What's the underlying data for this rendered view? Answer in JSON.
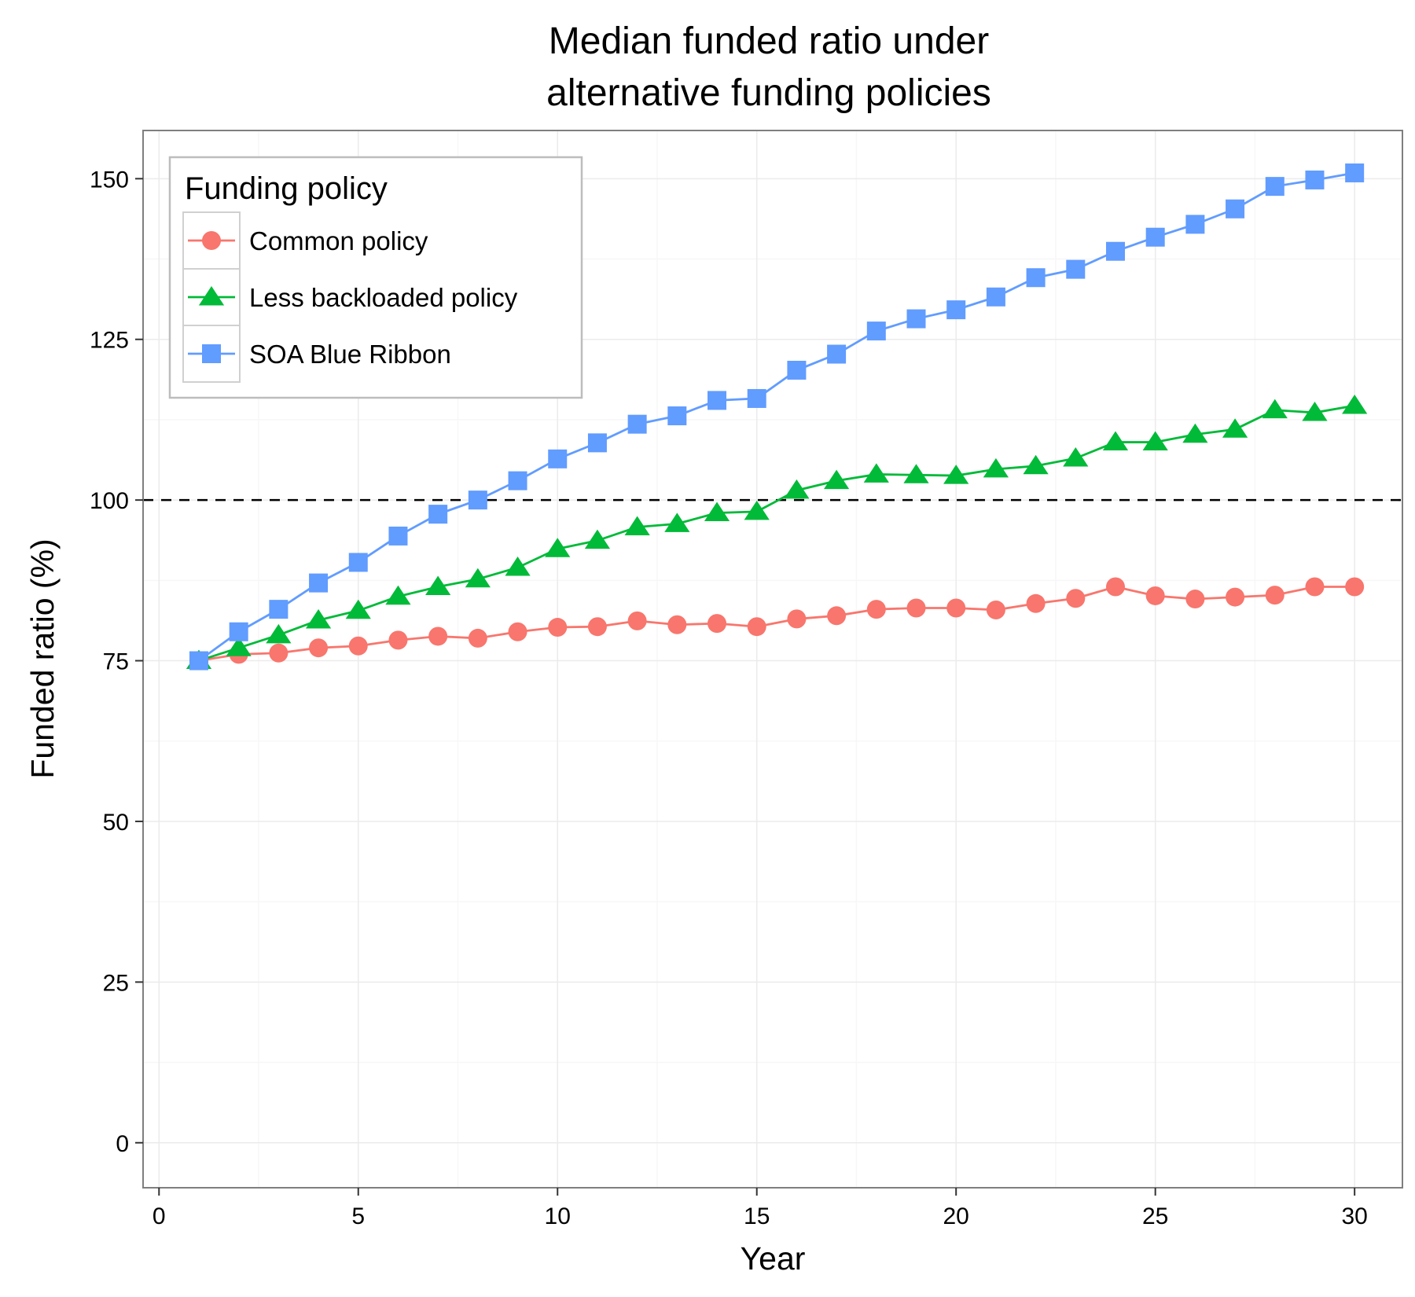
{
  "chart_data": {
    "type": "line",
    "title_line1": "Median funded ratio under",
    "title_line2": "alternative funding policies",
    "xlabel": "Year",
    "ylabel": "Funded ratio (%)",
    "xlim": [
      -0.4,
      31.2
    ],
    "ylim": [
      -7,
      157.5
    ],
    "x_ticks": [
      0,
      5,
      10,
      15,
      20,
      25,
      30
    ],
    "y_ticks": [
      0,
      25,
      50,
      75,
      100,
      125,
      150
    ],
    "x_tick_labels": [
      "0",
      "5",
      "10",
      "15",
      "20",
      "25",
      "30"
    ],
    "y_tick_labels": [
      "0",
      "25",
      "50",
      "75",
      "100",
      "125",
      "150"
    ],
    "reference_line": {
      "y": 100,
      "style": "dashed",
      "color": "#000000"
    },
    "grid": true,
    "legend": {
      "title": "Funding policy",
      "position": "top-left"
    },
    "x": [
      1,
      2,
      3,
      4,
      5,
      6,
      7,
      8,
      9,
      10,
      11,
      12,
      13,
      14,
      15,
      16,
      17,
      18,
      19,
      20,
      21,
      22,
      23,
      24,
      25,
      26,
      27,
      28,
      29,
      30
    ],
    "series": [
      {
        "name": "Common policy",
        "color": "#F8766D",
        "marker": "circle",
        "values": [
          75,
          76,
          76.2,
          77,
          77.3,
          78.2,
          78.8,
          78.5,
          79.5,
          80.2,
          80.3,
          81.2,
          80.6,
          80.8,
          80.3,
          81.5,
          82,
          83,
          83.2,
          83.2,
          82.9,
          83.9,
          84.7,
          86.5,
          85.1,
          84.6,
          84.9,
          85.2,
          86.5,
          86.5
        ]
      },
      {
        "name": "Less backloaded policy",
        "color": "#00BA38",
        "marker": "triangle",
        "values": [
          75,
          77,
          79,
          81.3,
          82.8,
          85,
          86.5,
          87.7,
          89.5,
          92.4,
          93.7,
          95.8,
          96.3,
          98,
          98.2,
          101.5,
          103,
          104,
          103.9,
          103.8,
          104.8,
          105.3,
          106.5,
          109,
          109,
          110.2,
          111,
          114,
          113.6,
          114.7
        ]
      },
      {
        "name": "SOA Blue Ribbon",
        "color": "#619CFF",
        "marker": "square",
        "values": [
          75,
          79.5,
          83,
          87.1,
          90.3,
          94.4,
          97.8,
          100,
          103,
          106.4,
          108.9,
          111.8,
          113.1,
          115.5,
          115.8,
          120.2,
          122.7,
          126.3,
          128.2,
          129.6,
          131.6,
          134.6,
          135.9,
          138.7,
          140.9,
          142.9,
          145.3,
          148.8,
          149.8,
          150.9
        ]
      }
    ]
  }
}
